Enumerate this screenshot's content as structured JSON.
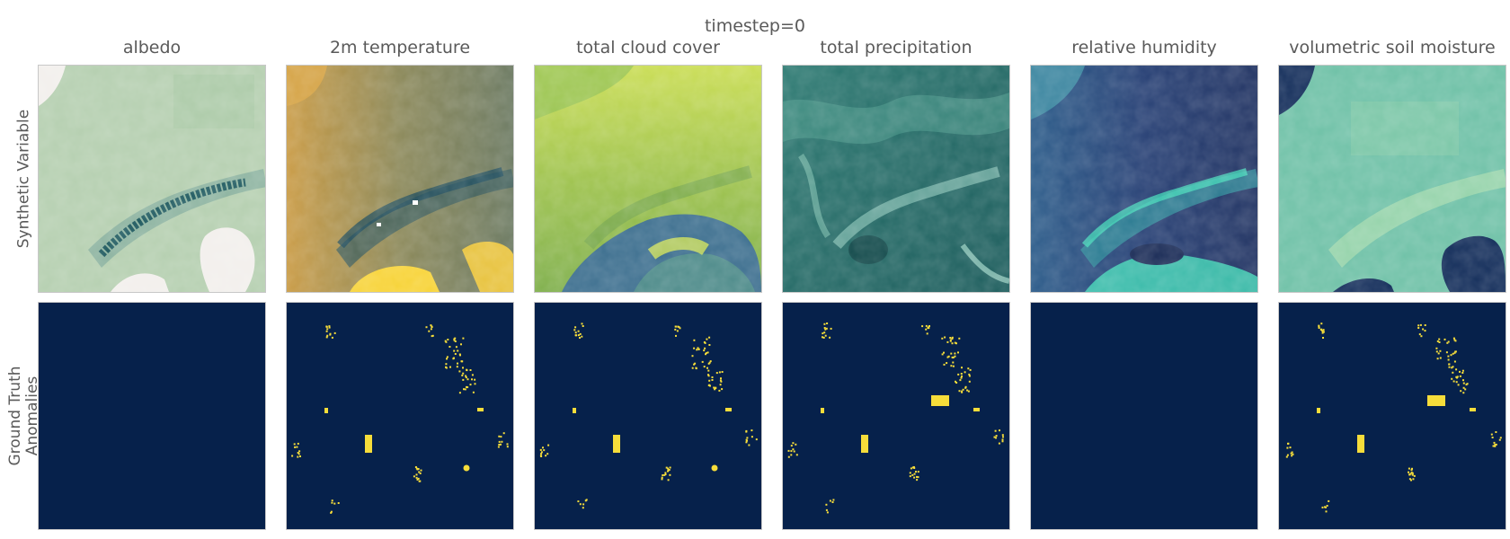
{
  "chart_data": {
    "type": "heatmap",
    "title": "timestep=0",
    "columns": [
      "albedo",
      "2m temperature",
      "total cloud cover",
      "total precipitation",
      "relative humidity",
      "volumetric soil moisture"
    ],
    "rows": [
      "Synthetic Variable",
      "Ground Truth\nAnomalies"
    ],
    "colormaps": {
      "albedo": [
        "#f2efec",
        "#b7d0b2",
        "#0c4a55"
      ],
      "2m temperature": [
        "#f7d337",
        "#8c8a5a",
        "#15475d"
      ],
      "total cloud cover": [
        "#3d6f8f",
        "#7fb34b",
        "#d4e35f"
      ],
      "total precipitation": [
        "#1c5d5e",
        "#3f8e84",
        "#9fd6c7"
      ],
      "relative humidity": [
        "#1e305e",
        "#2f5a86",
        "#42d9b8"
      ],
      "volumetric soil moisture": [
        "#132d5a",
        "#5bb1a1",
        "#a8dcae"
      ],
      "anomaly_mask": [
        "#06214b",
        "#f6dd3a"
      ]
    },
    "anomaly_mask": {
      "background": "#06214b",
      "anomaly": "#f6dd3a",
      "columns_with_anomalies": [
        "2m temperature",
        "total cloud cover",
        "total precipitation",
        "volumetric soil moisture"
      ],
      "columns_without_anomalies": [
        "albedo",
        "relative humidity"
      ]
    }
  }
}
